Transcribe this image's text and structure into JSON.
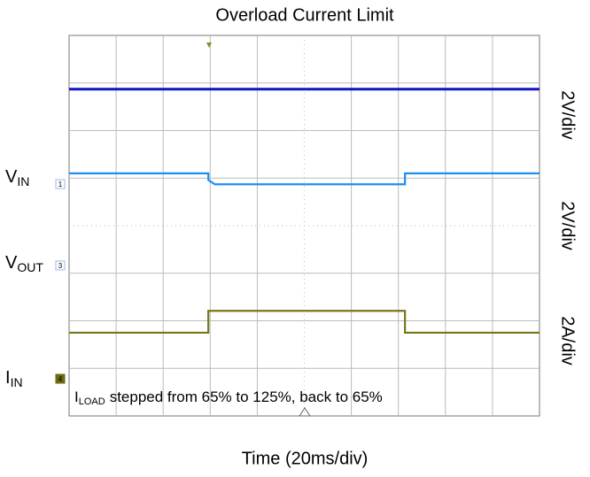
{
  "chart_data": {
    "type": "line",
    "title": "Overload Current Limit",
    "x_label": "Time (20ms/div)",
    "x": [
      0,
      2.96,
      2.96,
      3.1,
      7.14,
      7.14,
      10
    ],
    "xlim": [
      0,
      10
    ],
    "ylim": [
      0,
      8
    ],
    "grid": true,
    "series": [
      {
        "color": "#1414c8",
        "values": [
          6.87,
          6.87,
          6.87,
          6.87,
          6.87,
          6.87,
          6.87
        ]
      },
      {
        "color": "#1e8ff0",
        "values": [
          5.1,
          5.1,
          4.96,
          4.87,
          4.87,
          5.1,
          5.1
        ]
      },
      {
        "color": "#77771a",
        "values": [
          1.75,
          1.75,
          2.21,
          2.21,
          2.21,
          1.75,
          1.75
        ]
      }
    ],
    "scales": [
      "2V/div",
      "2V/div",
      "2A/div"
    ],
    "channels": [
      {
        "main": "V",
        "sub": "IN",
        "marker": "1"
      },
      {
        "main": "V",
        "sub": "OUT",
        "marker": "3"
      },
      {
        "main": "I",
        "sub": "IN",
        "marker": "4"
      }
    ],
    "annotation": {
      "main": "I",
      "sub": "LOAD",
      "text": "stepped from 65% to 125%, back to 65%"
    }
  }
}
